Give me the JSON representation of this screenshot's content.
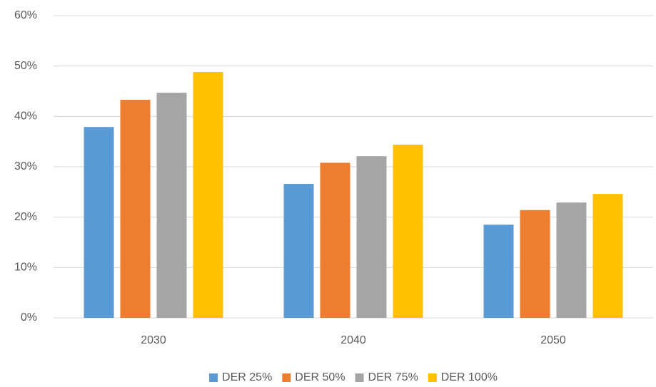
{
  "chart_data": {
    "type": "bar",
    "categories": [
      "2030",
      "2040",
      "2050"
    ],
    "series": [
      {
        "name": "DER 25%",
        "color": "#5b9bd5",
        "values": [
          37.9,
          26.6,
          18.5
        ]
      },
      {
        "name": "DER 50%",
        "color": "#ed7d31",
        "values": [
          43.3,
          30.8,
          21.4
        ]
      },
      {
        "name": "DER 75%",
        "color": "#a5a5a5",
        "values": [
          44.7,
          32.1,
          22.9
        ]
      },
      {
        "name": "DER 100%",
        "color": "#ffc000",
        "values": [
          48.8,
          34.4,
          24.6
        ]
      }
    ],
    "ylim": [
      0,
      60
    ],
    "yticks": [
      {
        "value": 0,
        "label": "0%"
      },
      {
        "value": 10,
        "label": "10%"
      },
      {
        "value": 20,
        "label": "20%"
      },
      {
        "value": 30,
        "label": "30%"
      },
      {
        "value": 40,
        "label": "40%"
      },
      {
        "value": 50,
        "label": "50%"
      },
      {
        "value": 60,
        "label": "60%"
      }
    ],
    "grid": true,
    "legend": "bottom"
  }
}
